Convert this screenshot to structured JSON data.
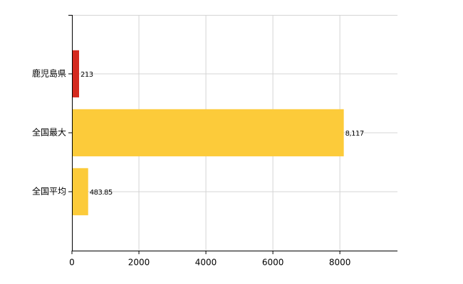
{
  "chart_data": {
    "type": "bar",
    "orientation": "horizontal",
    "categories": [
      "鹿児島県",
      "全国最大",
      "全国平均"
    ],
    "values": [
      213,
      8117,
      483.85
    ],
    "value_labels": [
      "213",
      "8,117",
      "483.85"
    ],
    "colors": [
      "#d42a1f",
      "#fccb3a",
      "#fccb3a"
    ],
    "xlim": [
      0,
      9720
    ],
    "xticks": [
      0,
      2000,
      4000,
      6000,
      8000
    ],
    "grid": true
  }
}
